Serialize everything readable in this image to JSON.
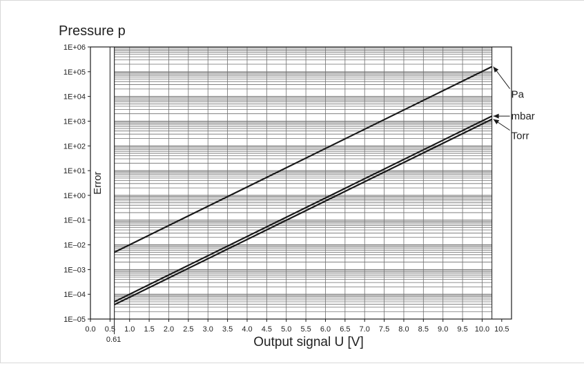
{
  "chart_data": {
    "type": "line",
    "title": "Pressure p",
    "xlabel": "Output signal U [V]",
    "ylabel": "",
    "xlim": [
      0.0,
      10.75
    ],
    "ylim": [
      1e-05,
      1000000.0
    ],
    "y_scale": "log",
    "grid": true,
    "x_ticks": [
      {
        "value": 0.0,
        "label": "0.0"
      },
      {
        "value": 0.5,
        "label": "0.5"
      },
      {
        "value": 1.0,
        "label": "1.0"
      },
      {
        "value": 1.5,
        "label": "1.5"
      },
      {
        "value": 2.0,
        "label": "2.0"
      },
      {
        "value": 2.5,
        "label": "2.5"
      },
      {
        "value": 3.0,
        "label": "3.0"
      },
      {
        "value": 3.5,
        "label": "3.5"
      },
      {
        "value": 4.0,
        "label": "4.0"
      },
      {
        "value": 4.5,
        "label": "4.5"
      },
      {
        "value": 5.0,
        "label": "5.0"
      },
      {
        "value": 5.5,
        "label": "5.5"
      },
      {
        "value": 6.0,
        "label": "6.0"
      },
      {
        "value": 6.5,
        "label": "6.5"
      },
      {
        "value": 7.0,
        "label": "7.0"
      },
      {
        "value": 7.5,
        "label": "7.5"
      },
      {
        "value": 8.0,
        "label": "8.0"
      },
      {
        "value": 8.5,
        "label": "8.5"
      },
      {
        "value": 9.0,
        "label": "9.0"
      },
      {
        "value": 9.5,
        "label": "9.5"
      },
      {
        "value": 10.0,
        "label": "10.0"
      },
      {
        "value": 10.5,
        "label": "10.5"
      }
    ],
    "x_extra_tick": {
      "value": 0.61,
      "label": "0.61"
    },
    "y_ticks": [
      {
        "value": 1e-05,
        "label": "1E–05"
      },
      {
        "value": 0.0001,
        "label": "1E–04"
      },
      {
        "value": 0.001,
        "label": "1E–03"
      },
      {
        "value": 0.01,
        "label": "1E–02"
      },
      {
        "value": 0.1,
        "label": "1E–01"
      },
      {
        "value": 1.0,
        "label": "1E+00"
      },
      {
        "value": 10.0,
        "label": "1E+01"
      },
      {
        "value": 100.0,
        "label": "1E+02"
      },
      {
        "value": 1000.0,
        "label": "1E+03"
      },
      {
        "value": 10000.0,
        "label": "1E+04"
      },
      {
        "value": 100000.0,
        "label": "1E+05"
      },
      {
        "value": 1000000.0,
        "label": "1E+06"
      }
    ],
    "error_region": {
      "x_range": [
        0.5,
        0.61
      ],
      "label": "Error"
    },
    "valid_region": [
      0.61,
      10.25
    ],
    "series": [
      {
        "name": "Pa",
        "x": [
          0.61,
          10.25
        ],
        "y": [
          0.005,
          160000.0
        ]
      },
      {
        "name": "mbar",
        "x": [
          0.61,
          10.25
        ],
        "y": [
          5e-05,
          1600.0
        ]
      },
      {
        "name": "Torr",
        "x": [
          0.61,
          10.25
        ],
        "y": [
          3.8e-05,
          1200.0
        ]
      }
    ],
    "colors": {
      "line": "#1a1a1a",
      "grid": "#6e6e6e",
      "frame": "#1a1a1a"
    }
  }
}
